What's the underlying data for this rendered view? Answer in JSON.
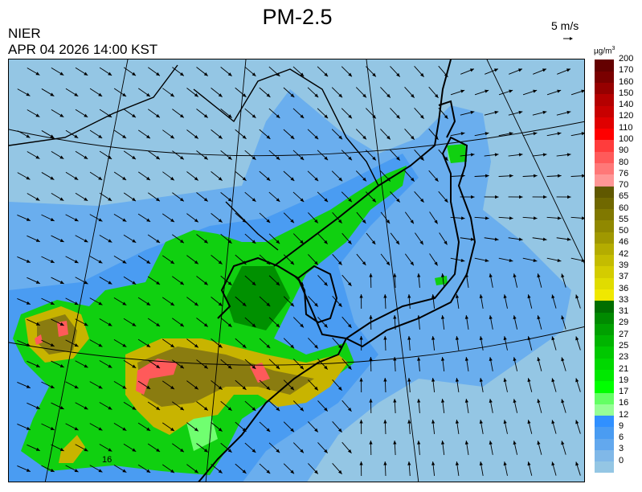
{
  "header": {
    "title": "PM-2.5",
    "organization": "NIER",
    "timestamp": "APR 04 2026 14:00 KST",
    "wind_reference_label": "5 m/s",
    "unit_label": "µg/m",
    "unit_exponent": "3"
  },
  "map": {
    "contour_label": "16",
    "colors": {
      "ocean_background": "#94c6e4",
      "low_blue": "#6aaeee",
      "mid_blue": "#4a9cf2",
      "green": "#10d010",
      "dark_green": "#009000",
      "light_green": "#70ff70",
      "yellow": "#c8b400",
      "olive": "#8a7c10",
      "red": "#ff5a5a"
    }
  },
  "legend": {
    "bins": [
      {
        "label": "0",
        "color": "#94c6e4"
      },
      {
        "label": "3",
        "color": "#80b8e8"
      },
      {
        "label": "6",
        "color": "#62a8ee"
      },
      {
        "label": "9",
        "color": "#4a9cf2"
      },
      {
        "label": "12",
        "color": "#3090ff"
      },
      {
        "label": "16",
        "color": "#96ff96"
      },
      {
        "label": "17",
        "color": "#64ff64"
      },
      {
        "label": "19",
        "color": "#00ff00"
      },
      {
        "label": "21",
        "color": "#00e800"
      },
      {
        "label": "23",
        "color": "#00d800"
      },
      {
        "label": "25",
        "color": "#00c800"
      },
      {
        "label": "27",
        "color": "#00b400"
      },
      {
        "label": "29",
        "color": "#00a000"
      },
      {
        "label": "31",
        "color": "#008a00"
      },
      {
        "label": "33",
        "color": "#006e00"
      },
      {
        "label": "36",
        "color": "#f0e800"
      },
      {
        "label": "37",
        "color": "#e0dc00"
      },
      {
        "label": "39",
        "color": "#d4cc00"
      },
      {
        "label": "42",
        "color": "#c4bc00"
      },
      {
        "label": "46",
        "color": "#b4ac00"
      },
      {
        "label": "50",
        "color": "#a09800"
      },
      {
        "label": "55",
        "color": "#908800"
      },
      {
        "label": "60",
        "color": "#807800"
      },
      {
        "label": "65",
        "color": "#706800"
      },
      {
        "label": "70",
        "color": "#605800"
      },
      {
        "label": "76",
        "color": "#ff9696"
      },
      {
        "label": "80",
        "color": "#ff7878"
      },
      {
        "label": "90",
        "color": "#ff5a5a"
      },
      {
        "label": "100",
        "color": "#ff3c3c"
      },
      {
        "label": "110",
        "color": "#ff0000"
      },
      {
        "label": "120",
        "color": "#e00000"
      },
      {
        "label": "140",
        "color": "#c80000"
      },
      {
        "label": "150",
        "color": "#b40000"
      },
      {
        "label": "160",
        "color": "#960000"
      },
      {
        "label": "170",
        "color": "#7a0000"
      },
      {
        "label": "200",
        "color": "#640000"
      }
    ]
  }
}
